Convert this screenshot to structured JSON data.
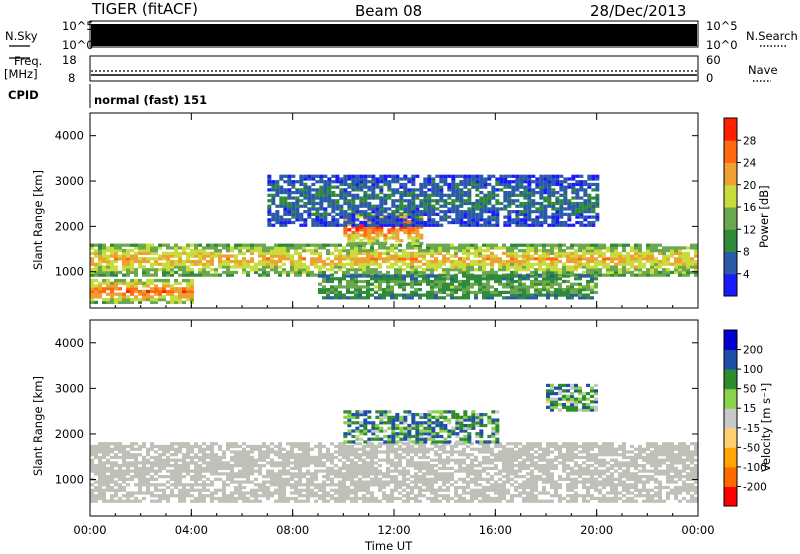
{
  "header": {
    "station": "TIGER (fitACF)",
    "beam": "Beam 08",
    "date": "28/Dec/2013"
  },
  "status_panels": {
    "nsky_label": "N.Sky",
    "nsky_ticks": [
      "10^5",
      "10^0"
    ],
    "nsearch_label": "N.Search",
    "nsearch_ticks": [
      "10^5",
      "10^0"
    ],
    "freq_label_1": "Freq.",
    "freq_label_2": "[MHz]",
    "freq_ticks": [
      "18",
      "8"
    ],
    "nave_label": "Nave",
    "nave_ticks": [
      "60",
      "0"
    ],
    "cpid_label": "CPID",
    "cpid_value": "normal (fast) 151"
  },
  "colors": {
    "power_scale": [
      "#1a1aff",
      "#2a5aa8",
      "#2f8a3a",
      "#6aa84f",
      "#c8dc3c",
      "#f0a030",
      "#ff6a10",
      "#ff2000"
    ],
    "velocity_scale": [
      "#ff0000",
      "#ff6a00",
      "#ffa500",
      "#ffd070",
      "#c8c8c8",
      "#8ad24a",
      "#2e8b2e",
      "#1f4fa8",
      "#0000d0"
    ],
    "ground_scatter": "#c0c0b8"
  },
  "chart_data": [
    {
      "type": "heatmap",
      "panel": "power",
      "ylabel": "Slant Range [km]",
      "xlabel": "Time UT",
      "x_ticks": [
        "00:00",
        "04:00",
        "08:00",
        "12:00",
        "16:00",
        "20:00",
        "00:00"
      ],
      "x_range_hours": [
        0,
        24
      ],
      "y_ticks": [
        1000,
        2000,
        3000,
        4000
      ],
      "y_range_km": [
        200,
        4500
      ],
      "colorbar_label": "Power [dB]",
      "colorbar_ticks": [
        4,
        8,
        12,
        16,
        20,
        24,
        28
      ],
      "features": [
        {
          "name": "main band",
          "time_hours": [
            0,
            24
          ],
          "range_km": [
            900,
            1600
          ],
          "typical_power_db": 22
        },
        {
          "name": "early low band",
          "time_hours": [
            0,
            4
          ],
          "range_km": [
            300,
            800
          ],
          "typical_power_db": 26
        },
        {
          "name": "midday echo",
          "time_hours": [
            10,
            13
          ],
          "range_km": [
            1600,
            2300
          ],
          "typical_power_db": 28
        },
        {
          "name": "upper band",
          "time_hours": [
            7,
            20
          ],
          "range_km": [
            2000,
            3100
          ],
          "typical_power_db": 8
        },
        {
          "name": "lower band",
          "time_hours": [
            9,
            20
          ],
          "range_km": [
            400,
            900
          ],
          "typical_power_db": 14
        }
      ]
    },
    {
      "type": "heatmap",
      "panel": "velocity",
      "ylabel": "Slant Range [km]",
      "xlabel": "Time UT",
      "x_ticks": [
        "00:00",
        "04:00",
        "08:00",
        "12:00",
        "16:00",
        "20:00",
        "00:00"
      ],
      "x_range_hours": [
        0,
        24
      ],
      "y_ticks": [
        1000,
        2000,
        3000,
        4000
      ],
      "y_range_km": [
        200,
        4500
      ],
      "colorbar_label": "Velocity [m s⁻¹]",
      "colorbar_ticks": [
        -200,
        -100,
        -50,
        -15,
        15,
        50,
        100,
        200
      ],
      "features": [
        {
          "name": "ground scatter band",
          "time_hours": [
            0,
            24
          ],
          "range_km": [
            500,
            1800
          ],
          "typical_velocity_ms": 0
        },
        {
          "name": "midday flow",
          "time_hours": [
            10,
            16
          ],
          "range_km": [
            1800,
            2500
          ],
          "typical_velocity_ms": 80
        },
        {
          "name": "evening echo",
          "time_hours": [
            18,
            20
          ],
          "range_km": [
            2500,
            3100
          ],
          "typical_velocity_ms": 60
        }
      ]
    }
  ]
}
